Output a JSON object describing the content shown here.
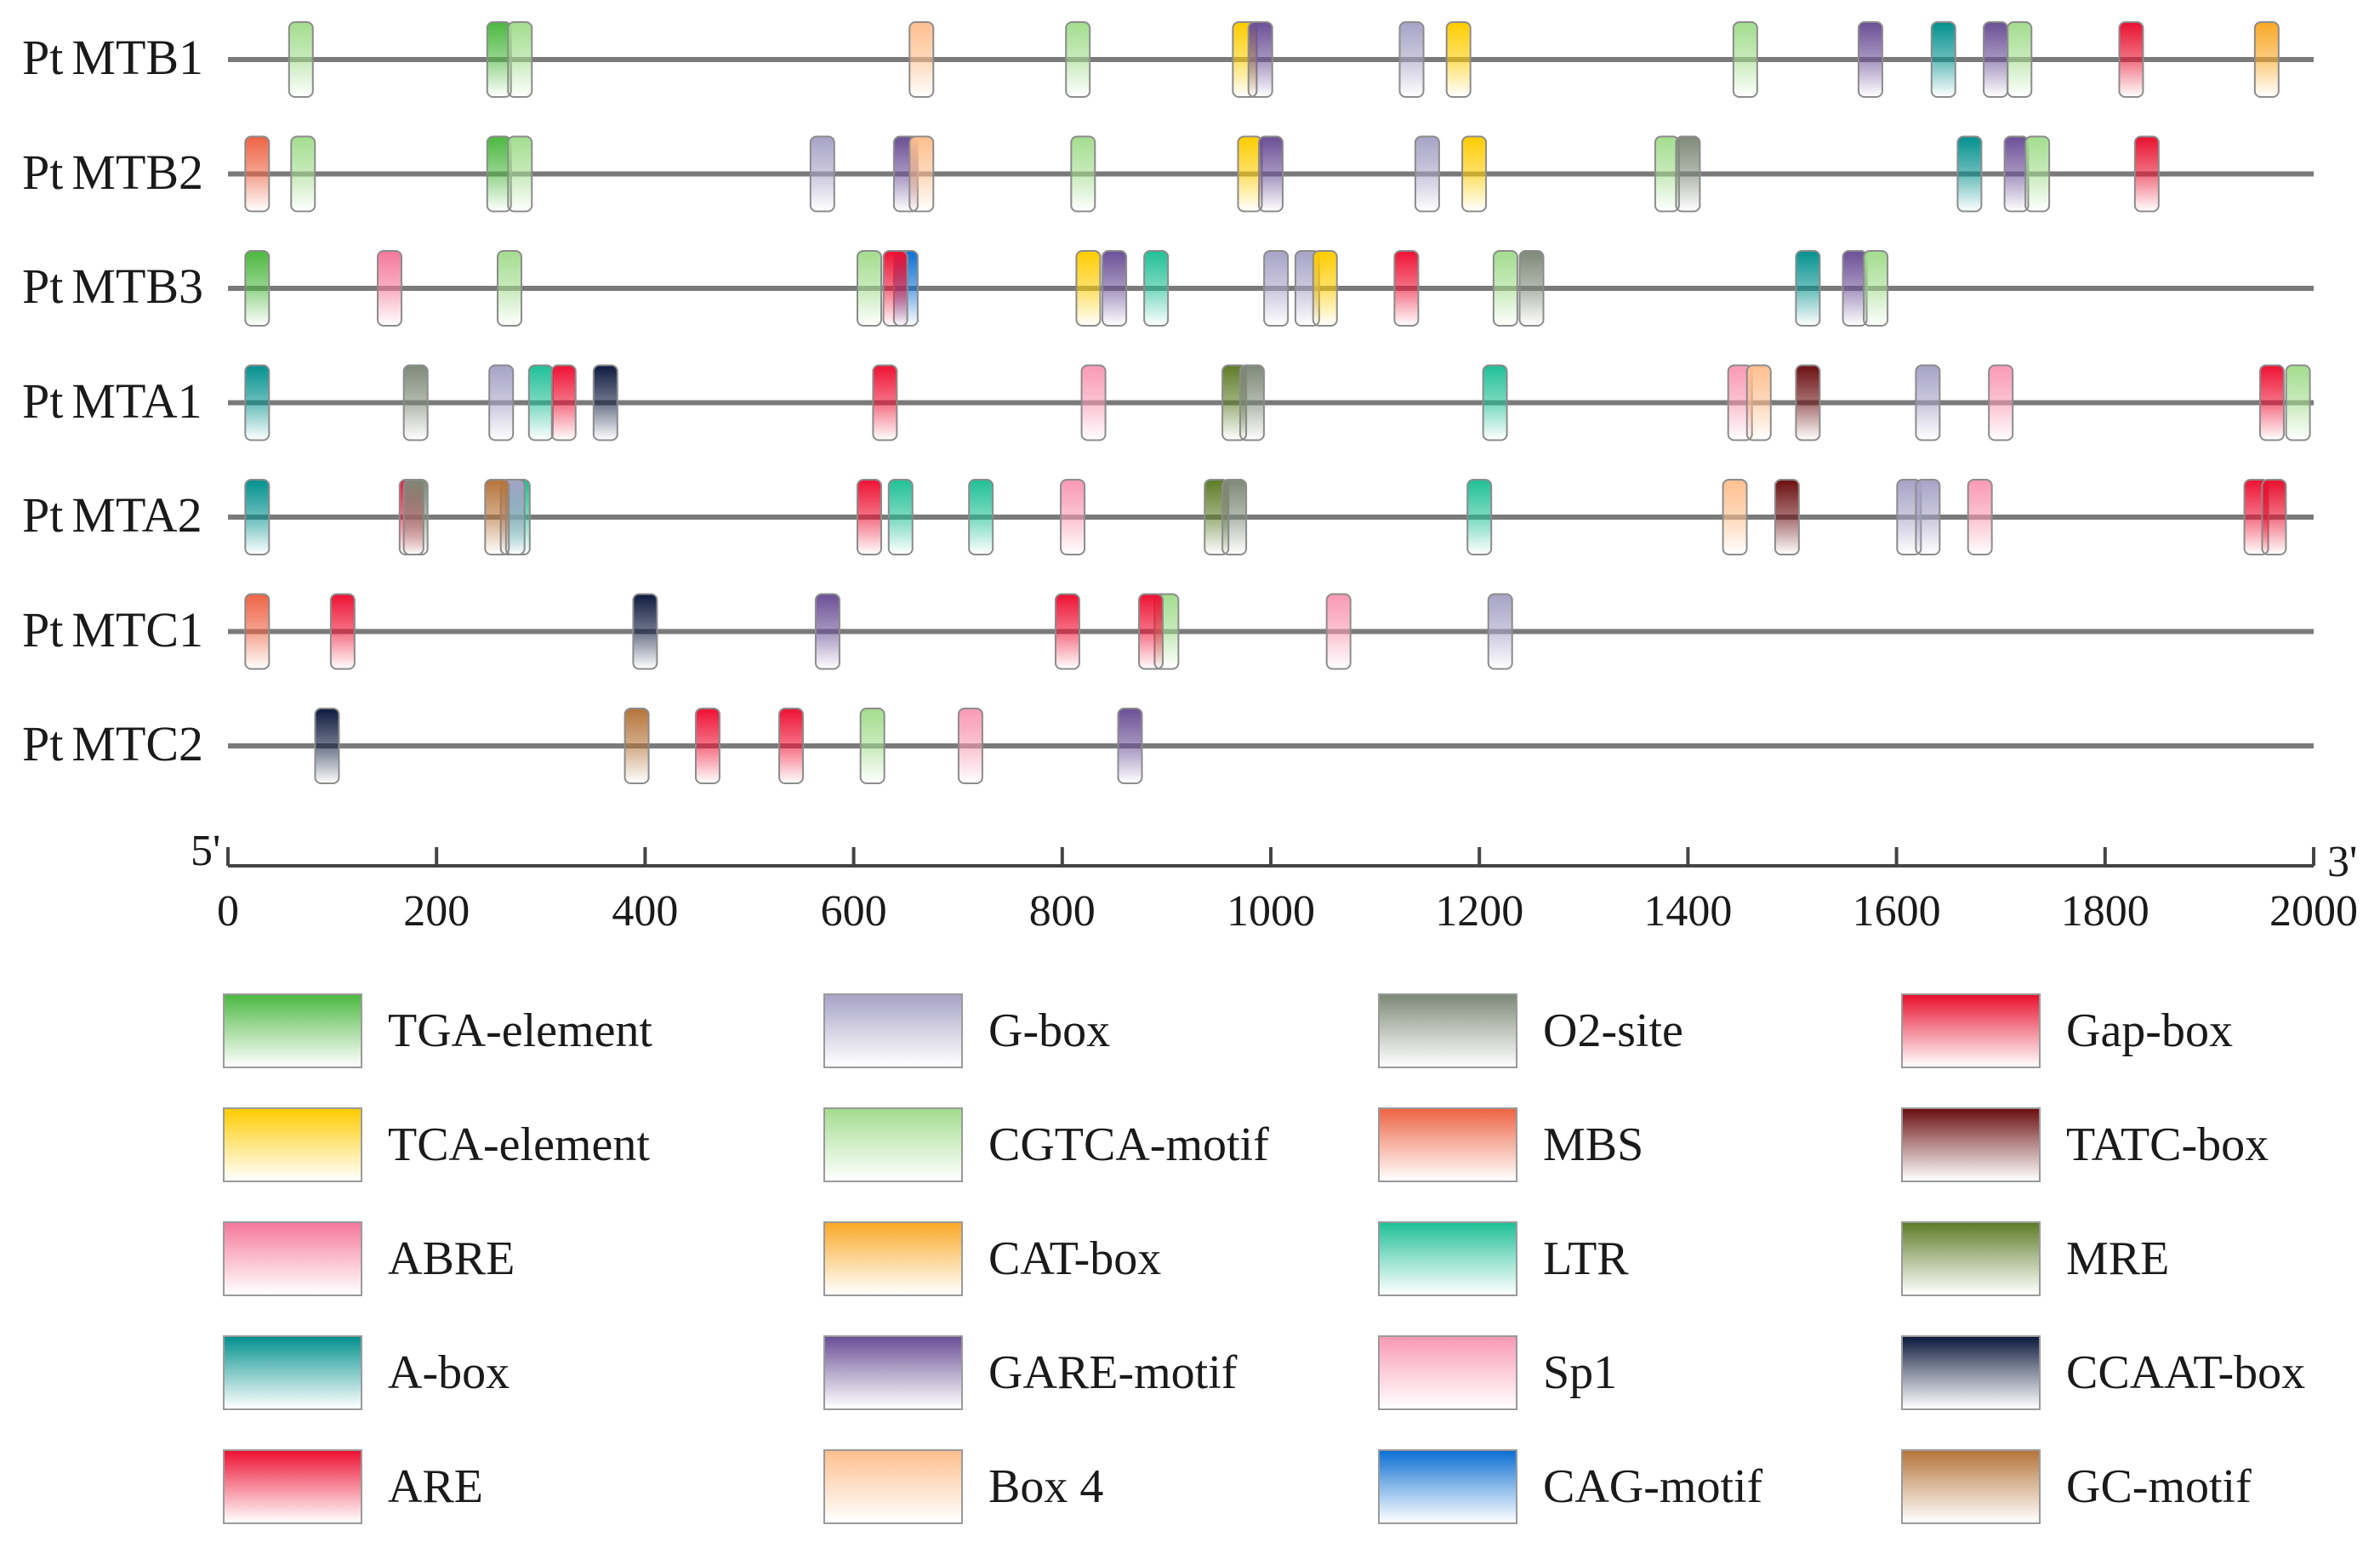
{
  "figure": {
    "axis": {
      "start_label": "5'",
      "end_label": "3'",
      "min": 0,
      "max": 2000,
      "ticks": [
        "0",
        "200",
        "400",
        "600",
        "800",
        "1000",
        "1200",
        "1400",
        "1600",
        "1800",
        "2000"
      ]
    },
    "colors": {
      "TGA-element": "#4cb840",
      "G-box": "#a7a3c6",
      "O2-site": "#7e8978",
      "Gap-box": "#e8102e",
      "TCA-element": "#ffcc00",
      "CGTCA-motif": "#a3dd8e",
      "MBS": "#ee6444",
      "TATC-box": "#6b0f10",
      "ABRE": "#f5789b",
      "CAT-box": "#f9a826",
      "LTR": "#20c096",
      "MRE": "#5e7c28",
      "A-box": "#03918e",
      "GARE-motif": "#6a4f96",
      "Sp1": "#f999b5",
      "CCAAT-box": "#0d1a3e",
      "ARE": "#ee1133",
      "Box 4": "#ffbf8e",
      "CAG-motif": "#0d6fd3",
      "GC-motif": "#b5743a"
    },
    "legend": [
      [
        "TGA-element",
        "G-box",
        "O2-site",
        "Gap-box"
      ],
      [
        "TCA-element",
        "CGTCA-motif",
        "MBS",
        "TATC-box"
      ],
      [
        "ABRE",
        "CAT-box",
        "LTR",
        "MRE"
      ],
      [
        "A-box",
        "GARE-motif",
        "Sp1",
        "CCAAT-box"
      ],
      [
        "ARE",
        "Box 4",
        "CAG-motif",
        "GC-motif"
      ]
    ],
    "genes": [
      {
        "prefix": "Pt",
        "name": "MTB1",
        "elements": [
          {
            "pos": 70,
            "type": "CGTCA-motif"
          },
          {
            "pos": 260,
            "type": "TGA-element"
          },
          {
            "pos": 280,
            "type": "CGTCA-motif"
          },
          {
            "pos": 665,
            "type": "Box 4"
          },
          {
            "pos": 815,
            "type": "CGTCA-motif"
          },
          {
            "pos": 975,
            "type": "TCA-element"
          },
          {
            "pos": 990,
            "type": "GARE-motif"
          },
          {
            "pos": 1135,
            "type": "G-box"
          },
          {
            "pos": 1180,
            "type": "TCA-element"
          },
          {
            "pos": 1455,
            "type": "CGTCA-motif"
          },
          {
            "pos": 1575,
            "type": "GARE-motif"
          },
          {
            "pos": 1645,
            "type": "A-box"
          },
          {
            "pos": 1695,
            "type": "GARE-motif"
          },
          {
            "pos": 1718,
            "type": "CGTCA-motif"
          },
          {
            "pos": 1825,
            "type": "Gap-box"
          },
          {
            "pos": 1955,
            "type": "CAT-box"
          }
        ]
      },
      {
        "prefix": "Pt",
        "name": "MTB2",
        "elements": [
          {
            "pos": 28,
            "type": "MBS"
          },
          {
            "pos": 72,
            "type": "CGTCA-motif"
          },
          {
            "pos": 260,
            "type": "TGA-element"
          },
          {
            "pos": 280,
            "type": "CGTCA-motif"
          },
          {
            "pos": 570,
            "type": "G-box"
          },
          {
            "pos": 650,
            "type": "GARE-motif"
          },
          {
            "pos": 665,
            "type": "Box 4"
          },
          {
            "pos": 820,
            "type": "CGTCA-motif"
          },
          {
            "pos": 980,
            "type": "TCA-element"
          },
          {
            "pos": 1000,
            "type": "GARE-motif"
          },
          {
            "pos": 1150,
            "type": "G-box"
          },
          {
            "pos": 1195,
            "type": "TCA-element"
          },
          {
            "pos": 1380,
            "type": "CGTCA-motif"
          },
          {
            "pos": 1400,
            "type": "O2-site"
          },
          {
            "pos": 1670,
            "type": "A-box"
          },
          {
            "pos": 1715,
            "type": "GARE-motif"
          },
          {
            "pos": 1735,
            "type": "CGTCA-motif"
          },
          {
            "pos": 1840,
            "type": "Gap-box"
          }
        ]
      },
      {
        "prefix": "Pt",
        "name": "MTB3",
        "elements": [
          {
            "pos": 28,
            "type": "TGA-element"
          },
          {
            "pos": 155,
            "type": "ABRE"
          },
          {
            "pos": 270,
            "type": "CGTCA-motif"
          },
          {
            "pos": 615,
            "type": "CGTCA-motif"
          },
          {
            "pos": 650,
            "type": "CAG-motif"
          },
          {
            "pos": 640,
            "type": "ARE"
          },
          {
            "pos": 825,
            "type": "TCA-element"
          },
          {
            "pos": 850,
            "type": "GARE-motif"
          },
          {
            "pos": 890,
            "type": "LTR"
          },
          {
            "pos": 1005,
            "type": "G-box"
          },
          {
            "pos": 1035,
            "type": "G-box"
          },
          {
            "pos": 1052,
            "type": "TCA-element"
          },
          {
            "pos": 1130,
            "type": "ARE"
          },
          {
            "pos": 1225,
            "type": "CGTCA-motif"
          },
          {
            "pos": 1250,
            "type": "O2-site"
          },
          {
            "pos": 1515,
            "type": "A-box"
          },
          {
            "pos": 1560,
            "type": "GARE-motif"
          },
          {
            "pos": 1580,
            "type": "CGTCA-motif"
          }
        ]
      },
      {
        "prefix": "Pt",
        "name": "MTA1",
        "elements": [
          {
            "pos": 28,
            "type": "A-box"
          },
          {
            "pos": 180,
            "type": "O2-site"
          },
          {
            "pos": 262,
            "type": "G-box"
          },
          {
            "pos": 300,
            "type": "LTR"
          },
          {
            "pos": 322,
            "type": "ARE"
          },
          {
            "pos": 362,
            "type": "CCAAT-box"
          },
          {
            "pos": 630,
            "type": "ARE"
          },
          {
            "pos": 830,
            "type": "Sp1"
          },
          {
            "pos": 965,
            "type": "MRE"
          },
          {
            "pos": 982,
            "type": "O2-site"
          },
          {
            "pos": 1215,
            "type": "LTR"
          },
          {
            "pos": 1450,
            "type": "Sp1"
          },
          {
            "pos": 1468,
            "type": "Box 4"
          },
          {
            "pos": 1515,
            "type": "TATC-box"
          },
          {
            "pos": 1630,
            "type": "G-box"
          },
          {
            "pos": 1700,
            "type": "Sp1"
          },
          {
            "pos": 1960,
            "type": "ARE"
          },
          {
            "pos": 1985,
            "type": "CGTCA-motif"
          }
        ]
      },
      {
        "prefix": "Pt",
        "name": "MTA2",
        "elements": [
          {
            "pos": 28,
            "type": "A-box"
          },
          {
            "pos": 176,
            "type": "ARE"
          },
          {
            "pos": 180,
            "type": "O2-site"
          },
          {
            "pos": 278,
            "type": "LTR"
          },
          {
            "pos": 273,
            "type": "G-box"
          },
          {
            "pos": 258,
            "type": "GC-motif"
          },
          {
            "pos": 615,
            "type": "ARE"
          },
          {
            "pos": 645,
            "type": "LTR"
          },
          {
            "pos": 722,
            "type": "LTR"
          },
          {
            "pos": 810,
            "type": "Sp1"
          },
          {
            "pos": 948,
            "type": "MRE"
          },
          {
            "pos": 965,
            "type": "O2-site"
          },
          {
            "pos": 1200,
            "type": "LTR"
          },
          {
            "pos": 1445,
            "type": "Box 4"
          },
          {
            "pos": 1495,
            "type": "TATC-box"
          },
          {
            "pos": 1612,
            "type": "G-box"
          },
          {
            "pos": 1630,
            "type": "G-box"
          },
          {
            "pos": 1680,
            "type": "Sp1"
          },
          {
            "pos": 1945,
            "type": "ARE"
          },
          {
            "pos": 1962,
            "type": "Gap-box"
          }
        ]
      },
      {
        "prefix": "Pt",
        "name": "MTC1",
        "elements": [
          {
            "pos": 28,
            "type": "MBS"
          },
          {
            "pos": 110,
            "type": "ARE"
          },
          {
            "pos": 400,
            "type": "CCAAT-box"
          },
          {
            "pos": 575,
            "type": "GARE-motif"
          },
          {
            "pos": 805,
            "type": "ARE"
          },
          {
            "pos": 900,
            "type": "CGTCA-motif"
          },
          {
            "pos": 885,
            "type": "ARE"
          },
          {
            "pos": 1065,
            "type": "Sp1"
          },
          {
            "pos": 1220,
            "type": "G-box"
          }
        ]
      },
      {
        "prefix": "Pt",
        "name": "MTC2",
        "elements": [
          {
            "pos": 95,
            "type": "CCAAT-box"
          },
          {
            "pos": 392,
            "type": "GC-motif"
          },
          {
            "pos": 460,
            "type": "ARE"
          },
          {
            "pos": 540,
            "type": "ARE"
          },
          {
            "pos": 618,
            "type": "CGTCA-motif"
          },
          {
            "pos": 712,
            "type": "Sp1"
          },
          {
            "pos": 865,
            "type": "GARE-motif"
          }
        ]
      }
    ]
  }
}
